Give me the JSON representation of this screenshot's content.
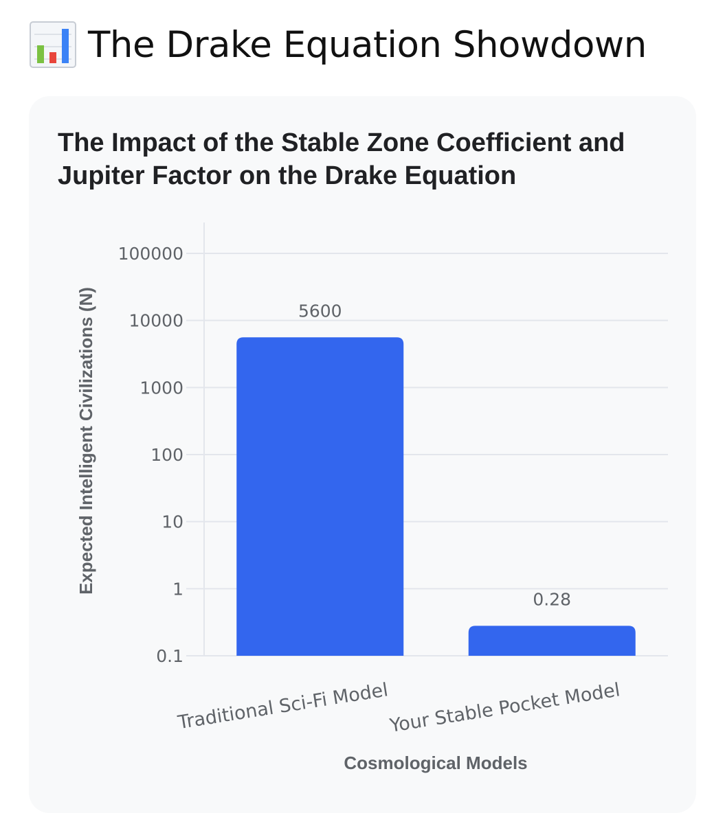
{
  "header": {
    "title": "The Drake Equation Showdown",
    "icon": "bar-chart-icon"
  },
  "colors": {
    "bar": "#3366ee",
    "grid": "#e3e6ec",
    "card_bg": "#f8f9fa",
    "text_muted": "#5f6368",
    "title_text": "#202124"
  },
  "chart_data": {
    "type": "bar",
    "title": "The Impact of the Stable Zone Coefficient and Jupiter Factor on the Drake Equation",
    "xlabel": "Cosmological Models",
    "ylabel": "Expected Intelligent Civilizations (N)",
    "categories": [
      "Traditional Sci-Fi Model",
      "Your Stable Pocket Model"
    ],
    "values": [
      5600,
      0.28
    ],
    "value_labels": [
      "5600",
      "0.28"
    ],
    "y_scale": "log",
    "ylim": [
      0.1,
      100000
    ],
    "y_ticks": [
      0.1,
      1,
      10,
      100,
      1000,
      10000,
      100000
    ],
    "y_tick_labels": [
      "0.1",
      "1",
      "10",
      "100",
      "1000",
      "10000",
      "100000"
    ],
    "grid": true,
    "legend": "none"
  }
}
